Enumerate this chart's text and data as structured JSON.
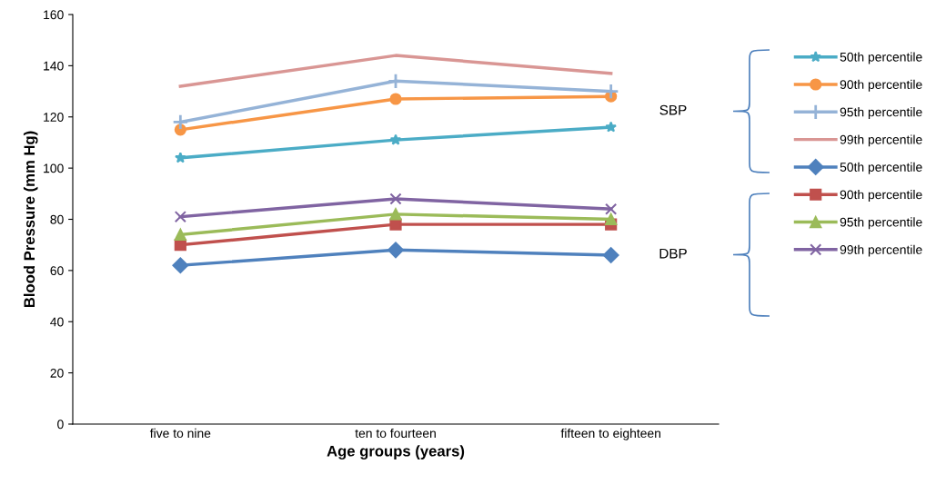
{
  "chart_data": {
    "type": "line",
    "xlabel": "Age groups (years)",
    "ylabel": "Blood Pressure (mm Hg)",
    "categories": [
      "five to nine",
      "ten to fourteen",
      "fifteen to eighteen"
    ],
    "ylim": [
      0,
      160
    ],
    "yticks": [
      0,
      20,
      40,
      60,
      80,
      100,
      120,
      140,
      160
    ],
    "grid": false,
    "legend": "right",
    "annotations": [
      "SBP",
      "DBP"
    ],
    "series": [
      {
        "name": "50th percentile",
        "color": "#4bacc6",
        "marker": "star",
        "values": [
          104,
          111,
          116
        ]
      },
      {
        "name": "90th percentile",
        "color": "#f79646",
        "marker": "circle",
        "values": [
          115,
          127,
          128
        ]
      },
      {
        "name": "95th percentile",
        "color": "#95b3d7",
        "marker": "plus",
        "values": [
          118,
          134,
          130
        ]
      },
      {
        "name": "99th percentile",
        "color": "#d99694",
        "marker": "none",
        "values": [
          132,
          144,
          137
        ]
      },
      {
        "name": "50th percentile",
        "color": "#4f81bd",
        "marker": "diamond",
        "values": [
          62,
          68,
          66
        ]
      },
      {
        "name": "90th percentile",
        "color": "#c0504d",
        "marker": "square",
        "values": [
          70,
          78,
          78
        ]
      },
      {
        "name": "95th percentile",
        "color": "#9bbb59",
        "marker": "triangle",
        "values": [
          74,
          82,
          80
        ]
      },
      {
        "name": "99th percentile",
        "color": "#8064a2",
        "marker": "cross",
        "values": [
          81,
          88,
          84
        ]
      }
    ]
  }
}
